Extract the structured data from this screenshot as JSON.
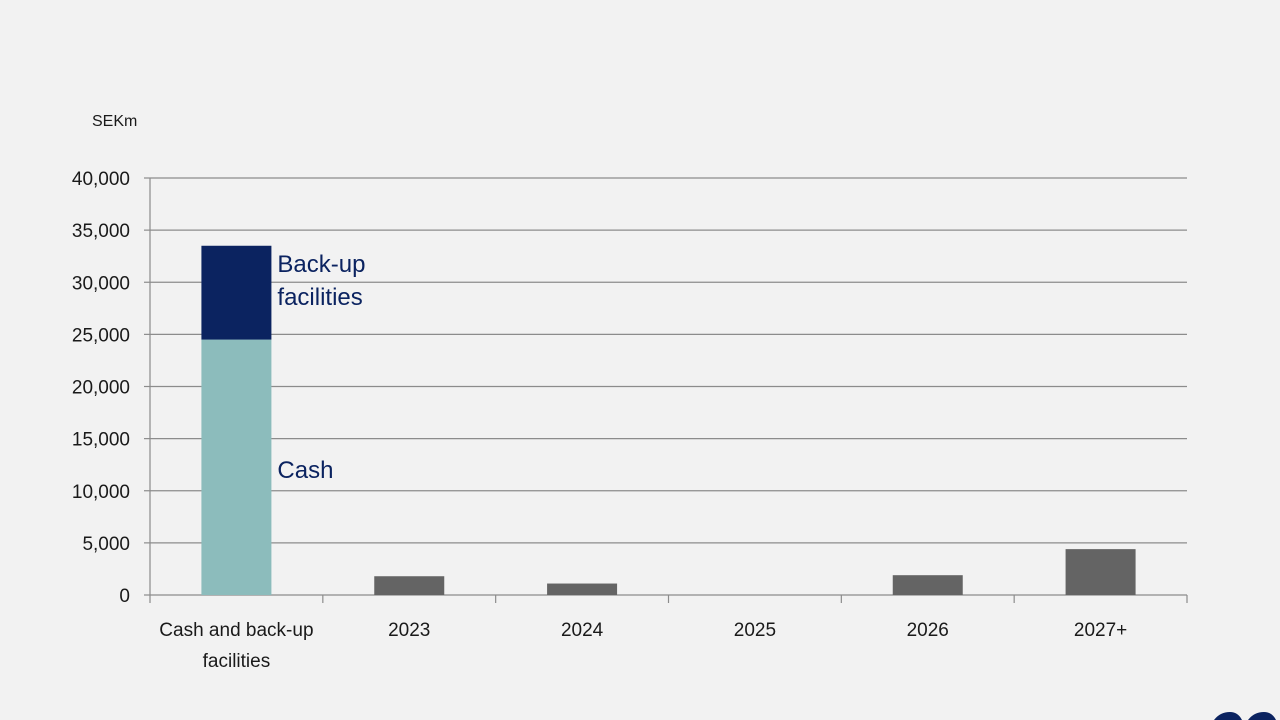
{
  "chart_data": {
    "type": "bar",
    "unit_label": "SEKm",
    "categories": [
      [
        "Cash and back-up",
        "facilities"
      ],
      [
        "2023"
      ],
      [
        "2024"
      ],
      [
        "2025"
      ],
      [
        "2026"
      ],
      [
        "2027+"
      ]
    ],
    "stacked_bar": {
      "category_index": 0,
      "segments": [
        {
          "name": "Cash",
          "value": 24500,
          "color": "#8cbcbc"
        },
        {
          "name": "Back-up facilities",
          "value": 9000,
          "color": "#0b2360"
        }
      ]
    },
    "maturities": {
      "color": "#646464",
      "values": [
        null,
        1800,
        1100,
        0,
        1900,
        4400
      ]
    },
    "ylim": [
      0,
      40000
    ],
    "yticks": [
      0,
      5000,
      10000,
      15000,
      20000,
      25000,
      30000,
      35000,
      40000
    ],
    "ytick_labels": [
      "0",
      "5,000",
      "10,000",
      "15,000",
      "20,000",
      "25,000",
      "30,000",
      "35,000",
      "40,000"
    ],
    "grid": true,
    "series_labels": {
      "cash": [
        "Cash"
      ],
      "backup": [
        "Back-up",
        "facilities"
      ]
    }
  }
}
